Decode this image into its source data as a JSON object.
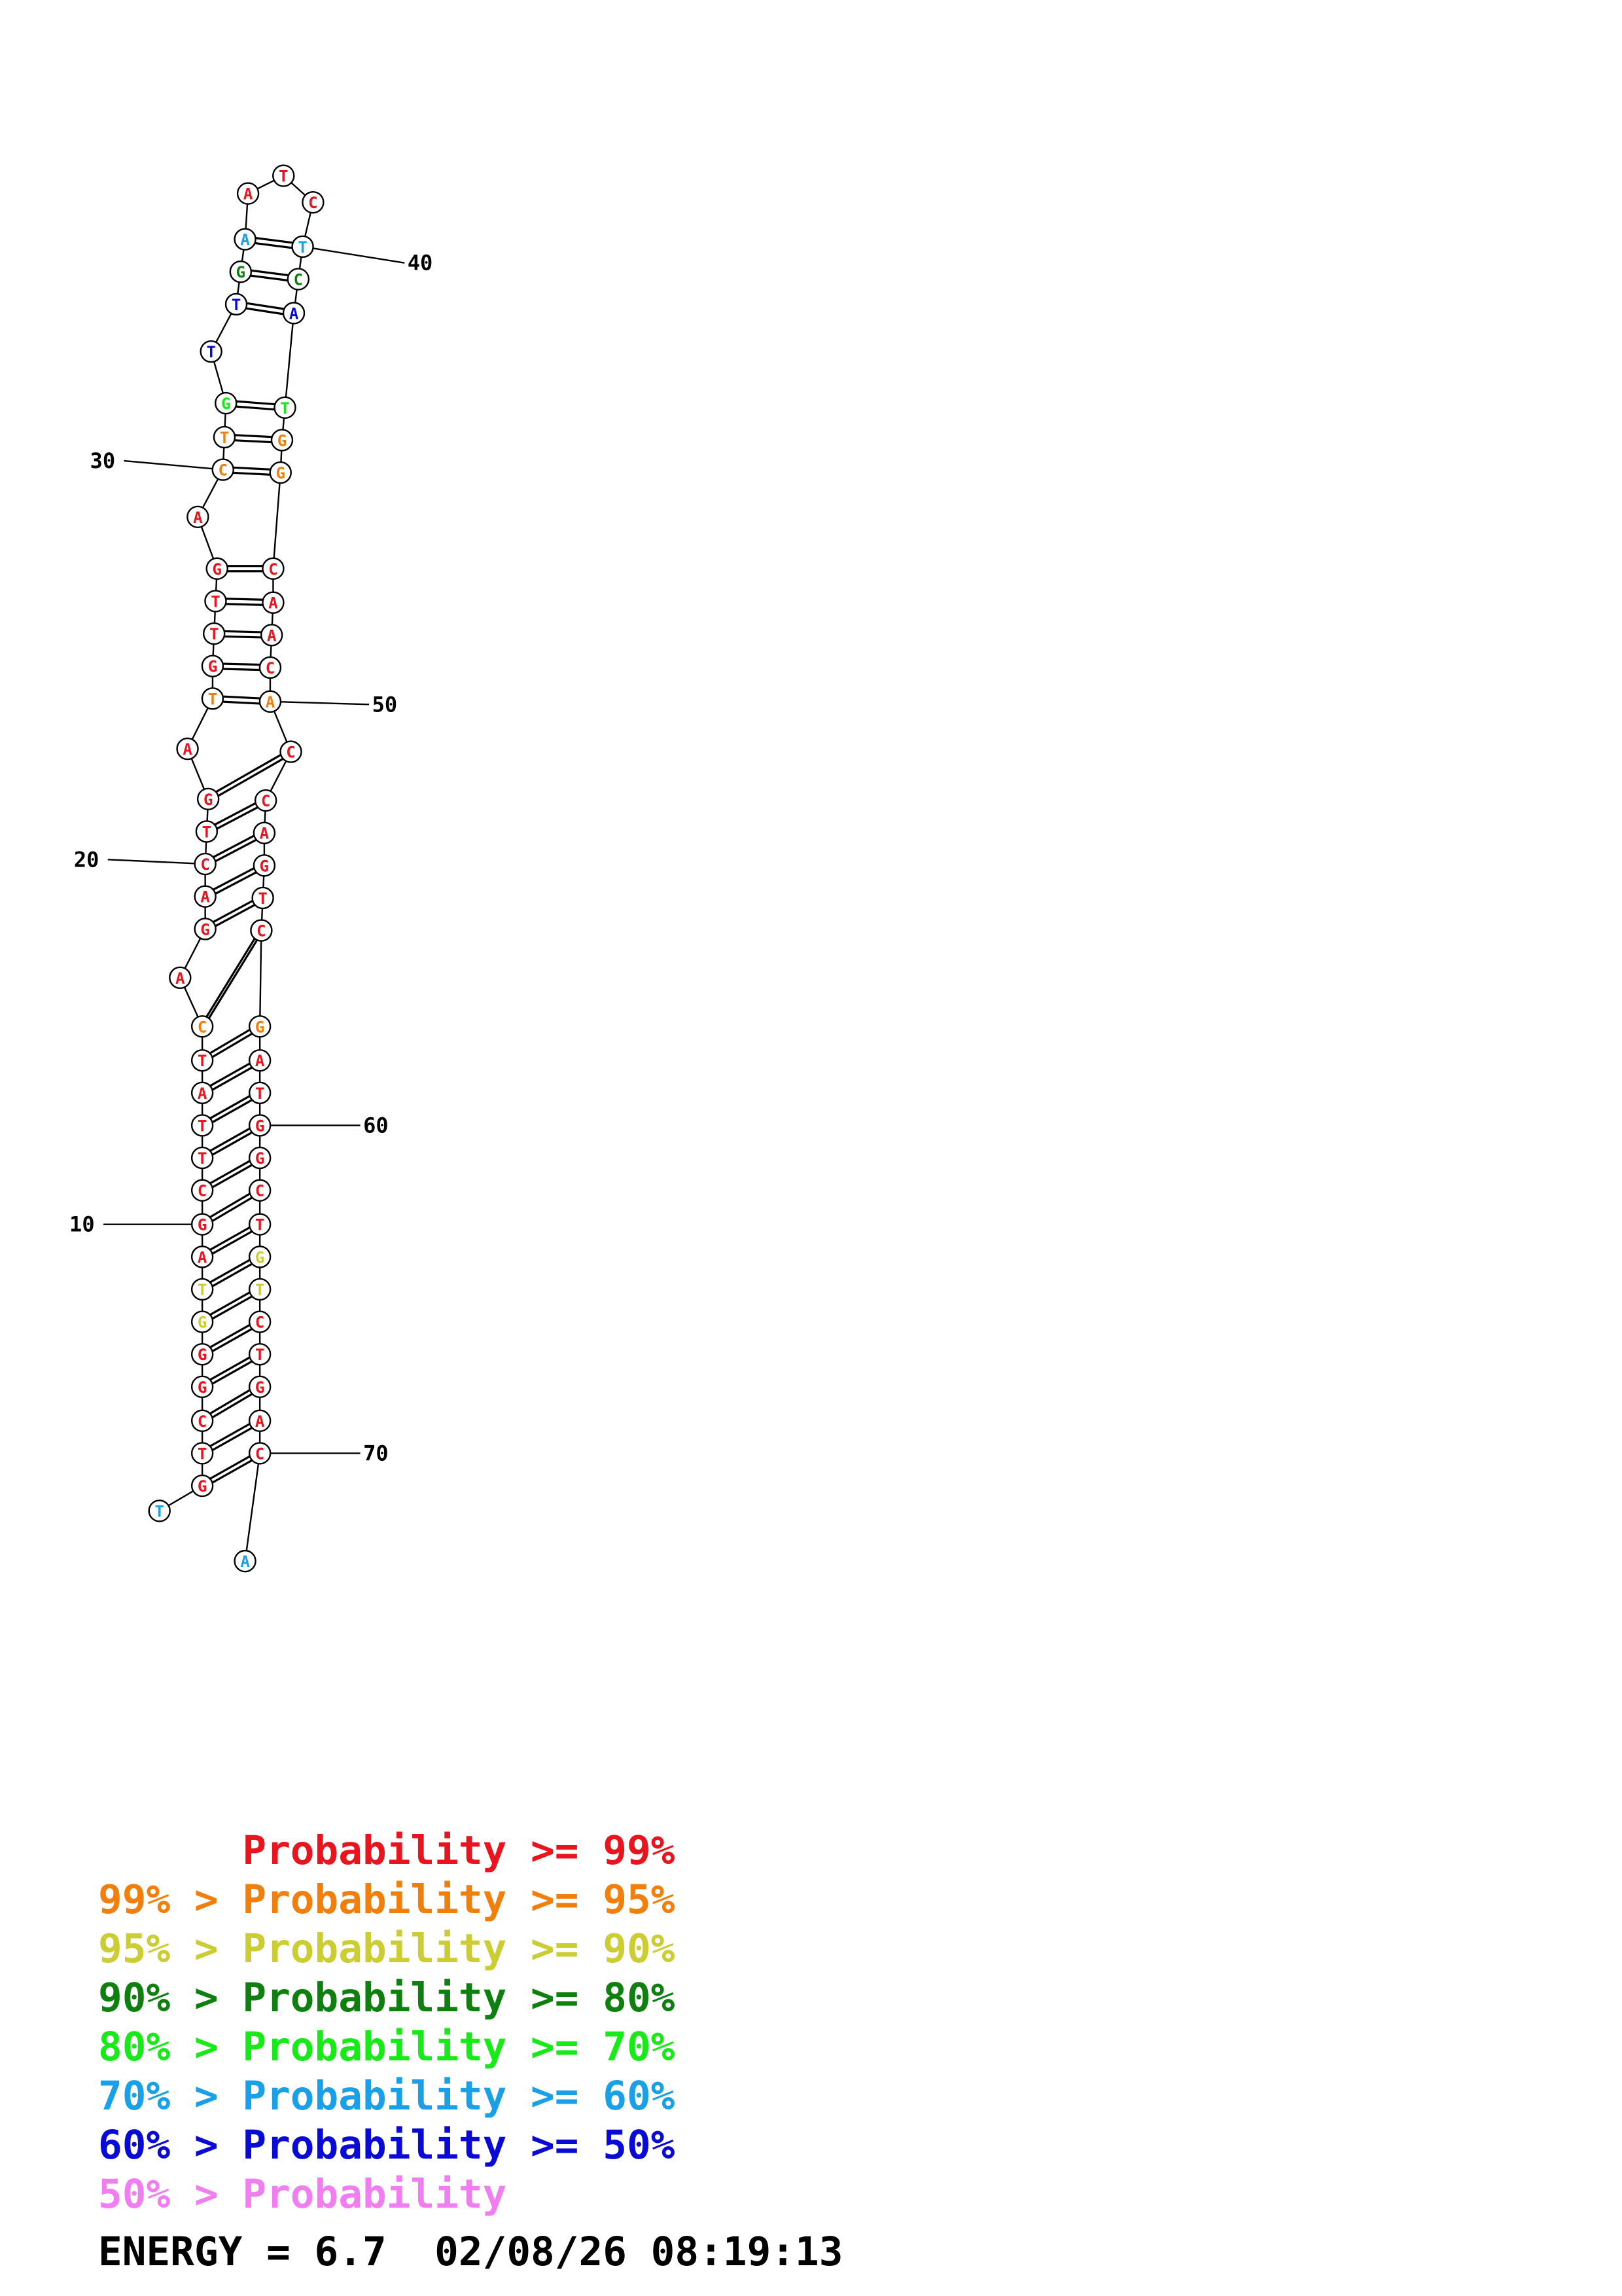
{
  "probability_colors": {
    "p99": "#e8141e",
    "p95": "#f07f0c",
    "p90": "#cccc33",
    "p80": "#0f7f0f",
    "p70": "#17ea17",
    "p60": "#1aa0e6",
    "p50": "#0a0ad6",
    "p0": "#f07ef0"
  },
  "nucleotides": [
    {
      "n": 1,
      "b": "T",
      "p": "p60"
    },
    {
      "n": 2,
      "b": "G",
      "p": "p99"
    },
    {
      "n": 3,
      "b": "T",
      "p": "p99"
    },
    {
      "n": 4,
      "b": "C",
      "p": "p99"
    },
    {
      "n": 5,
      "b": "G",
      "p": "p99"
    },
    {
      "n": 6,
      "b": "G",
      "p": "p99"
    },
    {
      "n": 7,
      "b": "G",
      "p": "p90"
    },
    {
      "n": 8,
      "b": "T",
      "p": "p90"
    },
    {
      "n": 9,
      "b": "A",
      "p": "p99"
    },
    {
      "n": 10,
      "b": "G",
      "p": "p99"
    },
    {
      "n": 11,
      "b": "C",
      "p": "p99"
    },
    {
      "n": 12,
      "b": "T",
      "p": "p99"
    },
    {
      "n": 13,
      "b": "T",
      "p": "p99"
    },
    {
      "n": 14,
      "b": "A",
      "p": "p99"
    },
    {
      "n": 15,
      "b": "T",
      "p": "p99"
    },
    {
      "n": 16,
      "b": "C",
      "p": "p95"
    },
    {
      "n": 17,
      "b": "A",
      "p": "p99"
    },
    {
      "n": 18,
      "b": "G",
      "p": "p99"
    },
    {
      "n": 19,
      "b": "A",
      "p": "p99"
    },
    {
      "n": 20,
      "b": "C",
      "p": "p99"
    },
    {
      "n": 21,
      "b": "T",
      "p": "p99"
    },
    {
      "n": 22,
      "b": "G",
      "p": "p99"
    },
    {
      "n": 23,
      "b": "A",
      "p": "p99"
    },
    {
      "n": 24,
      "b": "T",
      "p": "p95"
    },
    {
      "n": 25,
      "b": "G",
      "p": "p99"
    },
    {
      "n": 26,
      "b": "T",
      "p": "p99"
    },
    {
      "n": 27,
      "b": "T",
      "p": "p99"
    },
    {
      "n": 28,
      "b": "G",
      "p": "p99"
    },
    {
      "n": 29,
      "b": "A",
      "p": "p99"
    },
    {
      "n": 30,
      "b": "C",
      "p": "p95"
    },
    {
      "n": 31,
      "b": "T",
      "p": "p95"
    },
    {
      "n": 32,
      "b": "G",
      "p": "p70"
    },
    {
      "n": 33,
      "b": "T",
      "p": "p50"
    },
    {
      "n": 34,
      "b": "T",
      "p": "p50"
    },
    {
      "n": 35,
      "b": "G",
      "p": "p80"
    },
    {
      "n": 36,
      "b": "A",
      "p": "p60"
    },
    {
      "n": 37,
      "b": "A",
      "p": "p99"
    },
    {
      "n": 38,
      "b": "T",
      "p": "p99"
    },
    {
      "n": 39,
      "b": "C",
      "p": "p99"
    },
    {
      "n": 40,
      "b": "T",
      "p": "p60"
    },
    {
      "n": 41,
      "b": "C",
      "p": "p80"
    },
    {
      "n": 42,
      "b": "A",
      "p": "p50"
    },
    {
      "n": 43,
      "b": "T",
      "p": "p70"
    },
    {
      "n": 44,
      "b": "G",
      "p": "p95"
    },
    {
      "n": 45,
      "b": "G",
      "p": "p95"
    },
    {
      "n": 46,
      "b": "C",
      "p": "p99"
    },
    {
      "n": 47,
      "b": "A",
      "p": "p99"
    },
    {
      "n": 48,
      "b": "A",
      "p": "p99"
    },
    {
      "n": 49,
      "b": "C",
      "p": "p99"
    },
    {
      "n": 50,
      "b": "A",
      "p": "p95"
    },
    {
      "n": 51,
      "b": "C",
      "p": "p99"
    },
    {
      "n": 52,
      "b": "C",
      "p": "p99"
    },
    {
      "n": 53,
      "b": "A",
      "p": "p99"
    },
    {
      "n": 54,
      "b": "G",
      "p": "p99"
    },
    {
      "n": 55,
      "b": "T",
      "p": "p99"
    },
    {
      "n": 56,
      "b": "C",
      "p": "p99"
    },
    {
      "n": 57,
      "b": "G",
      "p": "p95"
    },
    {
      "n": 58,
      "b": "A",
      "p": "p99"
    },
    {
      "n": 59,
      "b": "T",
      "p": "p99"
    },
    {
      "n": 60,
      "b": "G",
      "p": "p99"
    },
    {
      "n": 61,
      "b": "G",
      "p": "p99"
    },
    {
      "n": 62,
      "b": "C",
      "p": "p99"
    },
    {
      "n": 63,
      "b": "T",
      "p": "p99"
    },
    {
      "n": 64,
      "b": "G",
      "p": "p90"
    },
    {
      "n": 65,
      "b": "T",
      "p": "p90"
    },
    {
      "n": 66,
      "b": "C",
      "p": "p99"
    },
    {
      "n": 67,
      "b": "T",
      "p": "p99"
    },
    {
      "n": 68,
      "b": "G",
      "p": "p99"
    },
    {
      "n": 69,
      "b": "A",
      "p": "p99"
    },
    {
      "n": 70,
      "b": "C",
      "p": "p99"
    },
    {
      "n": 71,
      "b": "A",
      "p": "p60"
    }
  ],
  "pairs": [
    [
      2,
      70
    ],
    [
      3,
      69
    ],
    [
      4,
      68
    ],
    [
      5,
      67
    ],
    [
      6,
      66
    ],
    [
      7,
      65
    ],
    [
      8,
      64
    ],
    [
      9,
      63
    ],
    [
      10,
      62
    ],
    [
      11,
      61
    ],
    [
      12,
      60
    ],
    [
      13,
      59
    ],
    [
      14,
      58
    ],
    [
      15,
      57
    ],
    [
      16,
      56
    ],
    [
      18,
      55
    ],
    [
      19,
      54
    ],
    [
      20,
      53
    ],
    [
      21,
      52
    ],
    [
      22,
      51
    ],
    [
      24,
      50
    ],
    [
      25,
      49
    ],
    [
      26,
      48
    ],
    [
      27,
      47
    ],
    [
      28,
      46
    ],
    [
      30,
      45
    ],
    [
      31,
      44
    ],
    [
      32,
      43
    ],
    [
      34,
      42
    ],
    [
      35,
      41
    ],
    [
      36,
      40
    ]
  ],
  "position_labels": [
    "10",
    "20",
    "30",
    "40",
    "50",
    "60",
    "70"
  ],
  "legend": [
    {
      "prefix": "      ",
      "text": "Probability >= 99%",
      "p": "p99"
    },
    {
      "prefix": "99% > ",
      "text": "Probability >= 95%",
      "p": "p95"
    },
    {
      "prefix": "95% > ",
      "text": "Probability >= 90%",
      "p": "p90"
    },
    {
      "prefix": "90% > ",
      "text": "Probability >= 80%",
      "p": "p80"
    },
    {
      "prefix": "80% > ",
      "text": "Probability >= 70%",
      "p": "p70"
    },
    {
      "prefix": "70% > ",
      "text": "Probability >= 60%",
      "p": "p60"
    },
    {
      "prefix": "60% > ",
      "text": "Probability >= 50%",
      "p": "p50"
    },
    {
      "prefix": "50% > ",
      "text": "Probability",
      "p": "p0"
    }
  ],
  "energy_text": "ENERGY = 6.7  02/08/26 08:19:13"
}
